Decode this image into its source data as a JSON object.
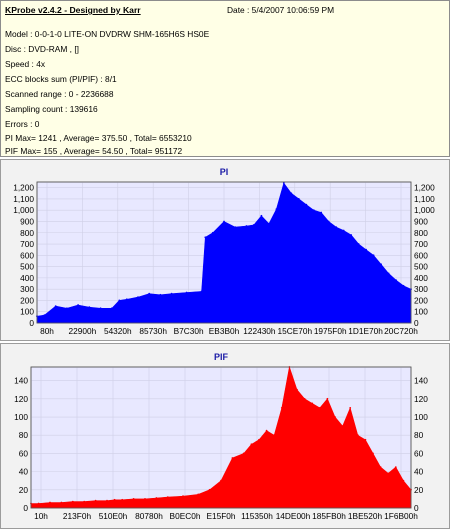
{
  "info": {
    "title": "KProbe v2.4.2 - Designed by Karr",
    "date": "Date : 5/4/2007 10:06:59 PM",
    "lines": [
      "Model : 0-0-1-0 LITE-ON DVDRW SHM-165H6S HS0E",
      "Disc : DVD-RAM ,  []",
      "Speed : 4x",
      "ECC blocks sum (PI/PIF) : 8/1",
      "Scanned range : 0 - 2236688",
      "Sampling count : 139616",
      "Errors : 0",
      "PI Max= 1241 , Average= 375.50 , Total= 6553210",
      "PIF Max= 155 , Average= 54.50 , Total= 951172"
    ]
  },
  "chart_data": [
    {
      "type": "area",
      "title": "PI",
      "color": "#0000ff",
      "background": "#e8e8ff",
      "ylim": [
        0,
        1250
      ],
      "yticks": [
        0,
        100,
        200,
        300,
        400,
        500,
        600,
        700,
        800,
        900,
        1000,
        1100,
        1200
      ],
      "ytick_labels": [
        "0",
        "100",
        "200",
        "300",
        "400",
        "500",
        "600",
        "700",
        "800",
        "900",
        "1,000",
        "1,100",
        "1,200"
      ],
      "xtick_labels": [
        "80h",
        "22900h",
        "54320h",
        "85730h",
        "B7C30h",
        "EB3B0h",
        "122430h",
        "15CE70h",
        "1975F0h",
        "1D1E70h",
        "20C720h"
      ],
      "x": [
        0,
        0.02,
        0.05,
        0.08,
        0.11,
        0.14,
        0.17,
        0.2,
        0.22,
        0.24,
        0.27,
        0.3,
        0.33,
        0.36,
        0.4,
        0.44,
        0.45,
        0.47,
        0.5,
        0.53,
        0.56,
        0.58,
        0.6,
        0.62,
        0.64,
        0.66,
        0.68,
        0.7,
        0.72,
        0.74,
        0.76,
        0.78,
        0.8,
        0.82,
        0.84,
        0.86,
        0.88,
        0.9,
        0.92,
        0.94,
        0.96,
        0.98,
        1.0
      ],
      "values": [
        60,
        70,
        150,
        130,
        160,
        140,
        130,
        130,
        200,
        210,
        230,
        260,
        250,
        260,
        270,
        280,
        760,
        800,
        900,
        850,
        860,
        870,
        950,
        880,
        1010,
        1241,
        1150,
        1100,
        1050,
        1000,
        980,
        900,
        850,
        820,
        780,
        700,
        650,
        600,
        520,
        440,
        380,
        330,
        300
      ]
    },
    {
      "type": "area",
      "title": "PIF",
      "color": "#ff0000",
      "background": "#e8e8ff",
      "ylim": [
        0,
        155
      ],
      "yticks": [
        0,
        20,
        40,
        60,
        80,
        100,
        120,
        140
      ],
      "ytick_labels": [
        "0",
        "20",
        "40",
        "60",
        "80",
        "100",
        "120",
        "140"
      ],
      "xtick_labels": [
        "10h",
        "213F0h",
        "510E0h",
        "80780h",
        "B0EC0h",
        "E15F0h",
        "115350h",
        "14DE00h",
        "185FB0h",
        "1BE520h",
        "1F6B00h"
      ],
      "x": [
        0,
        0.02,
        0.05,
        0.08,
        0.11,
        0.14,
        0.17,
        0.2,
        0.22,
        0.24,
        0.27,
        0.3,
        0.33,
        0.36,
        0.4,
        0.44,
        0.47,
        0.5,
        0.53,
        0.56,
        0.58,
        0.6,
        0.62,
        0.64,
        0.66,
        0.68,
        0.7,
        0.72,
        0.74,
        0.76,
        0.78,
        0.8,
        0.82,
        0.84,
        0.86,
        0.88,
        0.9,
        0.92,
        0.94,
        0.96,
        0.98,
        1.0
      ],
      "values": [
        5,
        5,
        6,
        6,
        7,
        7,
        8,
        8,
        9,
        9,
        10,
        10,
        11,
        12,
        13,
        15,
        20,
        30,
        55,
        60,
        70,
        75,
        85,
        80,
        110,
        155,
        130,
        120,
        115,
        110,
        120,
        100,
        90,
        110,
        80,
        75,
        60,
        45,
        38,
        45,
        30,
        20
      ]
    }
  ]
}
